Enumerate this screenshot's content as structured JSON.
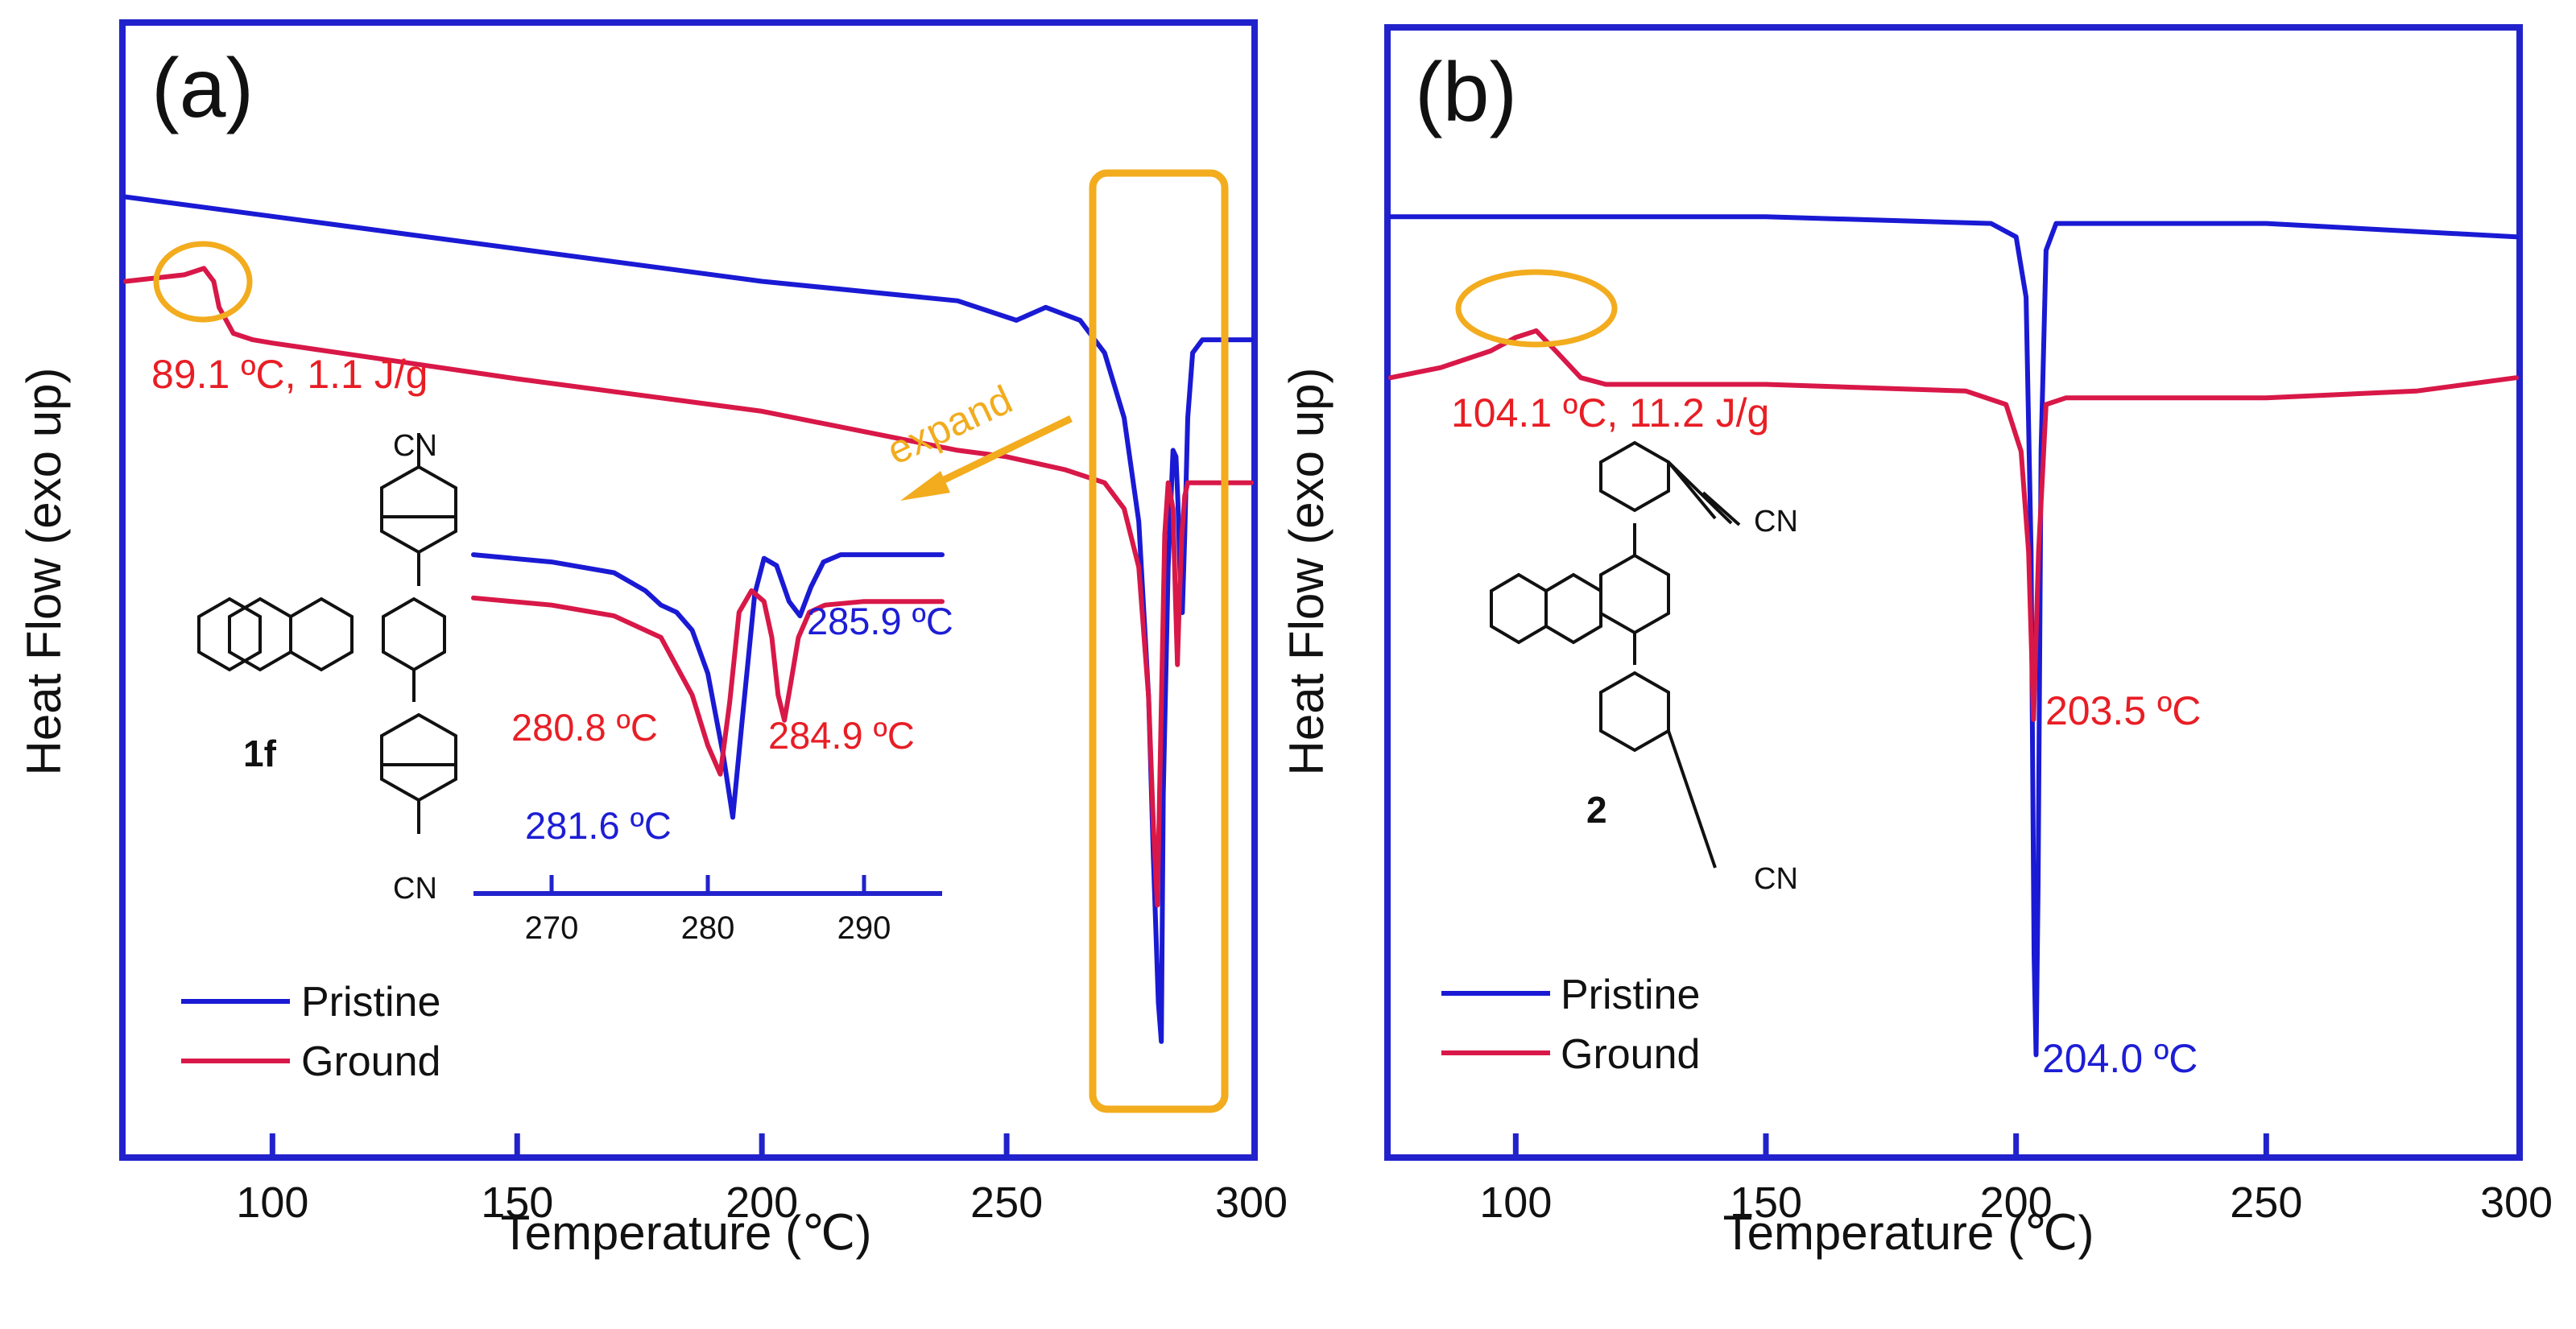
{
  "figure": {
    "colors": {
      "frame": "#2222cc",
      "pristine": "#1a1ad4",
      "ground": "#d81848",
      "highlight": "#f2ac1e",
      "text_black": "#111111",
      "label_red": "#e81e25",
      "label_blue": "#1d1dd6"
    }
  },
  "chart_data": [
    {
      "id": "a",
      "type": "line",
      "panel_label": "(a)",
      "xlabel": "Temperature (℃)",
      "ylabel": "Heat Flow (exo up)",
      "xlim": [
        70,
        300
      ],
      "xticks": [
        100,
        150,
        200,
        250,
        300
      ],
      "tick_labels": [
        "100",
        "150",
        "200",
        "250",
        "300"
      ],
      "ylim": [
        -80,
        60
      ],
      "y_units": "arbitrary",
      "legend": {
        "position": "bottom-left",
        "entries": [
          "Pristine",
          "Ground"
        ]
      },
      "series": [
        {
          "name": "Pristine",
          "x": [
            70,
            100,
            150,
            200,
            240,
            252,
            258,
            265,
            270,
            274,
            277,
            279,
            280,
            281,
            281.6,
            282,
            283,
            284,
            284.6,
            285,
            285.5,
            285.9,
            286.4,
            287,
            288,
            290,
            300
          ],
          "y": [
            52,
            49,
            44,
            39,
            36,
            33,
            35,
            33,
            28,
            18,
            2,
            -25,
            -50,
            -72,
            -78,
            -40,
            -5,
            13,
            12,
            5,
            -8,
            -12,
            0,
            18,
            28,
            30,
            30
          ]
        },
        {
          "name": "Ground",
          "x": [
            70,
            82,
            86,
            88,
            89.1,
            92,
            96,
            100,
            150,
            200,
            240,
            250,
            262,
            270,
            274,
            277,
            279,
            280,
            280.8,
            281.5,
            282.3,
            283,
            284,
            284.5,
            284.9,
            285.3,
            285.8,
            286.4,
            287,
            290,
            300
          ],
          "y": [
            39,
            40,
            41,
            39,
            35,
            31,
            30,
            29.5,
            24,
            19,
            13,
            12,
            10,
            8,
            4,
            -5,
            -25,
            -45,
            -57,
            -30,
            0,
            8,
            4,
            -10,
            -20,
            -10,
            0,
            6,
            8,
            8,
            8
          ]
        }
      ],
      "annotations": [
        {
          "text": "89.1 ºC, 1.1 J/g",
          "x": 89.1,
          "series": "Ground",
          "type": "exotherm"
        },
        {
          "text": "expand",
          "type": "note"
        }
      ],
      "highlight_regions": [
        {
          "x_range": [
            269,
            296
          ],
          "note": "expanded in inset"
        }
      ],
      "inset": {
        "xlim": [
          265,
          295
        ],
        "xticks": [
          270,
          280,
          290
        ],
        "tick_labels": [
          "270",
          "280",
          "290"
        ],
        "ylim": [
          -82,
          12
        ],
        "series": [
          {
            "name": "Pristine",
            "x": [
              265,
              270,
              274,
              276,
              277,
              278,
              279,
              280,
              281,
              281.6,
              282.2,
              283,
              283.6,
              284.4,
              285.2,
              285.9,
              286.6,
              287.4,
              288.5,
              290,
              295
            ],
            "y": [
              1,
              -1,
              -4,
              -9,
              -13,
              -15,
              -20,
              -32,
              -55,
              -72,
              -45,
              -10,
              0,
              -2,
              -12,
              -16,
              -8,
              -1,
              1,
              1,
              1
            ]
          },
          {
            "name": "Ground",
            "x": [
              265,
              270,
              274,
              277,
              279,
              280,
              280.8,
              281.4,
              282,
              282.8,
              283.6,
              284.1,
              284.5,
              284.9,
              285.3,
              285.8,
              286.5,
              287.5,
              290,
              295
            ],
            "y": [
              -11,
              -13,
              -16,
              -22,
              -38,
              -52,
              -60,
              -40,
              -15,
              -9,
              -12,
              -22,
              -38,
              -45,
              -35,
              -22,
              -15,
              -13,
              -12,
              -12
            ]
          }
        ],
        "peak_labels": [
          {
            "text": "285.9 ºC",
            "series": "Pristine",
            "x": 285.9
          },
          {
            "text": "280.8 ºC",
            "series": "Ground",
            "x": 280.8
          },
          {
            "text": "284.9 ºC",
            "series": "Ground",
            "x": 284.9
          },
          {
            "text": "281.6 ºC",
            "series": "Pristine",
            "x": 281.6
          }
        ]
      },
      "compound": {
        "label": "1f",
        "substituent_text": [
          "CN",
          "CN"
        ]
      }
    },
    {
      "id": "b",
      "type": "line",
      "panel_label": "(b)",
      "xlabel": "Temperature (℃)",
      "ylabel": "Heat Flow (exo up)",
      "xlim": [
        75,
        300
      ],
      "xticks": [
        100,
        150,
        200,
        250,
        300
      ],
      "tick_labels": [
        "100",
        "150",
        "200",
        "250",
        "300"
      ],
      "ylim": [
        -100,
        40
      ],
      "y_units": "arbitrary",
      "legend": {
        "position": "bottom-left",
        "entries": [
          "Pristine",
          "Ground"
        ]
      },
      "series": [
        {
          "name": "Pristine",
          "x": [
            75,
            150,
            195,
            200,
            202,
            203,
            203.6,
            204,
            204.4,
            205,
            206,
            208,
            220,
            250,
            300
          ],
          "y": [
            30,
            30,
            29,
            27,
            18,
            -20,
            -80,
            -95,
            -70,
            -5,
            25,
            29,
            29,
            29,
            27
          ]
        },
        {
          "name": "Ground",
          "x": [
            75,
            85,
            95,
            100,
            104.1,
            108,
            113,
            118,
            125,
            150,
            190,
            198,
            201,
            202.5,
            203.5,
            204.5,
            206,
            210,
            250,
            280,
            300
          ],
          "y": [
            6,
            7.5,
            10,
            12,
            13,
            10,
            6,
            5,
            5,
            5,
            4,
            2,
            -5,
            -20,
            -45,
            -20,
            2,
            3,
            3,
            4,
            6
          ]
        }
      ],
      "annotations": [
        {
          "text": "104.1 ºC, 11.2 J/g",
          "x": 104.1,
          "series": "Ground",
          "type": "exotherm"
        },
        {
          "text": "203.5 ºC",
          "x": 203.5,
          "series": "Ground",
          "type": "peak"
        },
        {
          "text": "204.0 ºC",
          "x": 204.0,
          "series": "Pristine",
          "type": "peak"
        }
      ],
      "compound": {
        "label": "2",
        "substituent_text": [
          "CN",
          "CN"
        ]
      }
    }
  ]
}
